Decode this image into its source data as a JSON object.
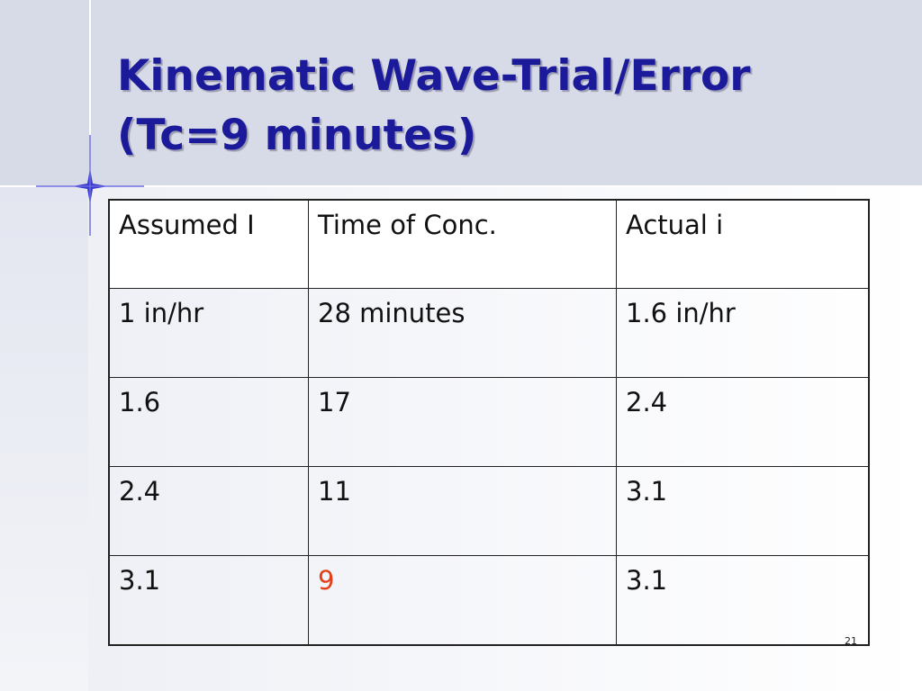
{
  "title": "Kinematic Wave-Trial/Error (Tc=9 minutes)",
  "table": {
    "header": [
      "Assumed I",
      "Time of Conc.",
      "Actual i"
    ],
    "rows": [
      [
        "1 in/hr",
        "28 minutes",
        "1.6 in/hr"
      ],
      [
        "1.6",
        "17",
        "2.4"
      ],
      [
        "2.4",
        "11",
        "3.1"
      ],
      [
        "3.1",
        "9",
        "3.1"
      ]
    ]
  },
  "page_number": "21"
}
